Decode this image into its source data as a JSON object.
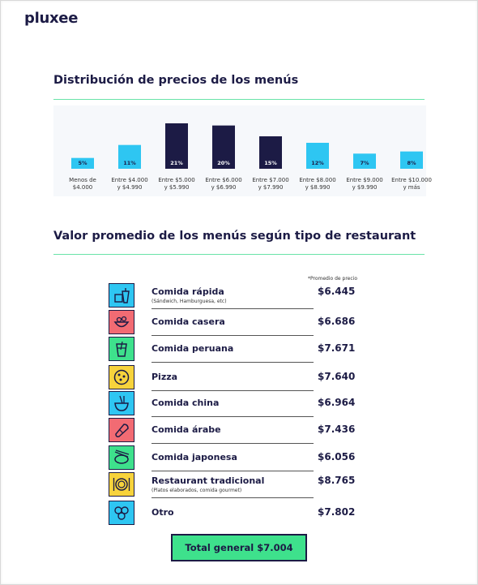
{
  "brand": "pluxee",
  "colors": {
    "navy": "#1c1b45",
    "cyan": "#2ec6f2",
    "green_rule": "#69e3a8",
    "total_bg": "#3ee18c",
    "icon_fast": "#2ec6f2",
    "icon_red": "#f26b73",
    "icon_green": "#3ee18c",
    "icon_yellow": "#f7d33c"
  },
  "section1": {
    "title": "Distribución de precios de los menús"
  },
  "chart_data": {
    "type": "bar",
    "title": "Distribución de precios de los menús",
    "xlabel": "",
    "ylabel": "",
    "categories": [
      [
        "Menos de",
        "$4.000"
      ],
      [
        "Entre $4.000",
        "y $4.990"
      ],
      [
        "Entre $5.000",
        "y $5.990"
      ],
      [
        "Entre $6.000",
        "y $6.990"
      ],
      [
        "Entre $7.000",
        "y $7.990"
      ],
      [
        "Entre $8.000",
        "y $8.990"
      ],
      [
        "Entre $9.000",
        "y $9.990"
      ],
      [
        "Entre $10.000",
        "y más"
      ]
    ],
    "values": [
      5,
      11,
      21,
      20,
      15,
      12,
      7,
      8
    ],
    "labels": [
      "5%",
      "11%",
      "21%",
      "20%",
      "15%",
      "12%",
      "7%",
      "8%"
    ],
    "highlight": [
      false,
      false,
      true,
      true,
      true,
      false,
      false,
      false
    ],
    "ylim": [
      0,
      21
    ],
    "grid": false
  },
  "section2": {
    "title": "Valor promedio de los menús según tipo de restaurant",
    "note": "*Promedio de precio"
  },
  "restaurants": [
    {
      "name": "Comida rápida",
      "sub": "(Sándwich, Hamburguesa, etc)",
      "value": "$6.445",
      "icon": "fast-food-icon",
      "color": "#2ec6f2"
    },
    {
      "name": "Comida casera",
      "sub": "",
      "value": "$6.686",
      "icon": "salad-bowl-icon",
      "color": "#f26b73"
    },
    {
      "name": "Comida peruana",
      "sub": "",
      "value": "$7.671",
      "icon": "drink-glass-icon",
      "color": "#3ee18c"
    },
    {
      "name": "Pizza",
      "sub": "",
      "value": "$7.640",
      "icon": "pizza-icon",
      "color": "#f7d33c"
    },
    {
      "name": "Comida china",
      "sub": "",
      "value": "$6.964",
      "icon": "noodle-bowl-icon",
      "color": "#2ec6f2"
    },
    {
      "name": "Comida árabe",
      "sub": "",
      "value": "$7.436",
      "icon": "wrap-icon",
      "color": "#f26b73"
    },
    {
      "name": "Comida japonesa",
      "sub": "",
      "value": "$6.056",
      "icon": "sushi-icon",
      "color": "#3ee18c"
    },
    {
      "name": "Restaurant tradicional",
      "sub": "(Platos elaborados, comida gourmet)",
      "value": "$8.765",
      "icon": "plate-cutlery-icon",
      "color": "#f7d33c"
    },
    {
      "name": "Otro",
      "sub": "",
      "value": "$7.802",
      "icon": "other-food-icon",
      "color": "#2ec6f2"
    }
  ],
  "total": {
    "label": "Total general $7.004"
  }
}
